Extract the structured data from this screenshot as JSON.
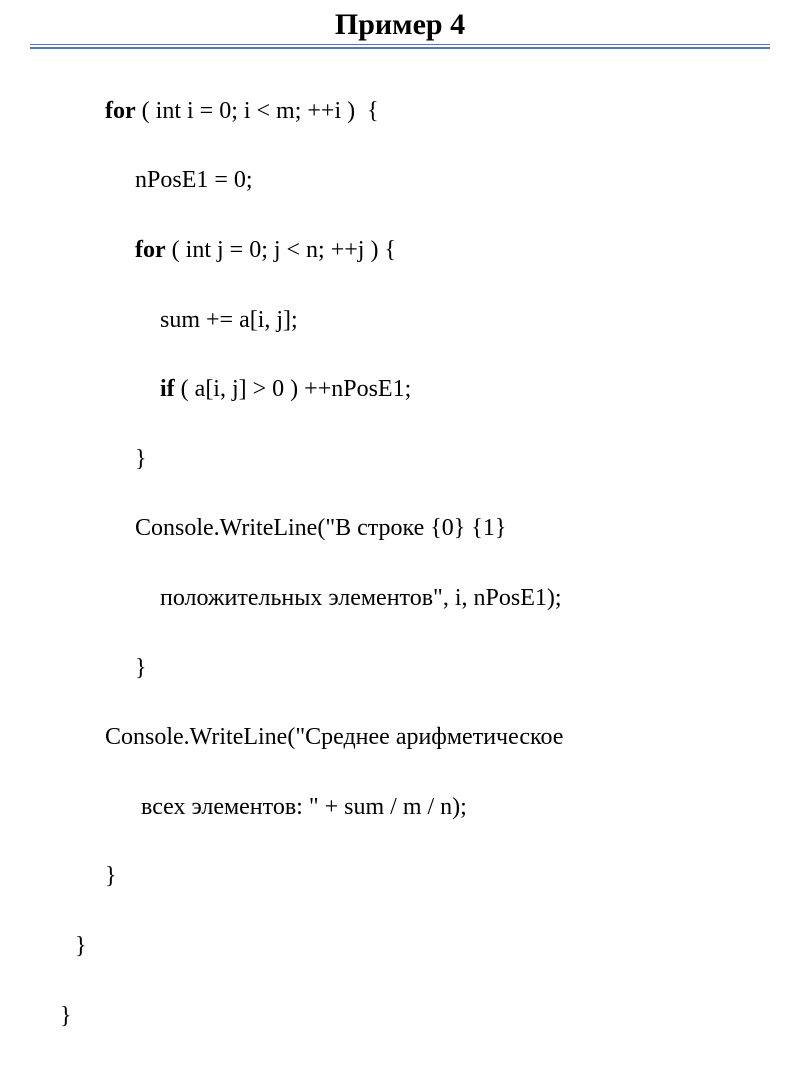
{
  "title": "Пример 4",
  "code": {
    "line1_kw": "for",
    "line1_rest": " ( int i = 0; i < m; ++i )  {",
    "line2": "nPosE1 = 0;",
    "line3_kw": "for",
    "line3_rest": " ( int j = 0; j < n; ++j ) {",
    "line4": "sum += a[i, j];",
    "line5_kw": "if",
    "line5_rest": " ( a[i, j] > 0 ) ++nPosE1;",
    "line6": "}",
    "line7": "Console.WriteLine(\"В строке {0} {1}",
    "line8": "положительных элементов\", i, nPosE1);",
    "line9": "}",
    "line10": "Console.WriteLine(\"Среднее арифметическое",
    "line11": " всех элементов: \" + sum / m / n);",
    "line12": "}",
    "line13": "}",
    "line14": "}"
  },
  "colors": {
    "text": "#000000",
    "background": "#ffffff",
    "divider": "#5b7aa6"
  },
  "typography": {
    "title_fontsize": 30,
    "code_fontsize": 24,
    "font_family": "Times New Roman"
  }
}
